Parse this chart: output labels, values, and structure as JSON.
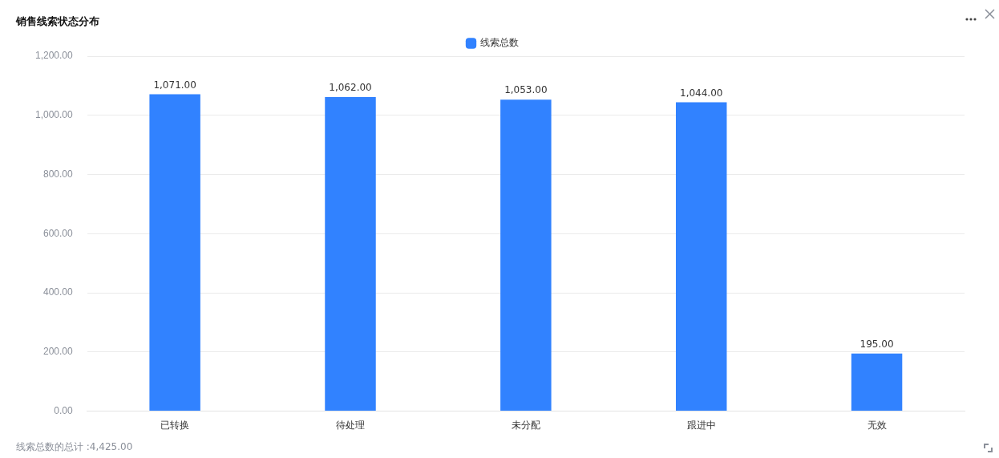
{
  "chart_data": {
    "type": "bar",
    "title": "销售线索状态分布",
    "categories": [
      "已转换",
      "待处理",
      "未分配",
      "跟进中",
      "无效"
    ],
    "series": [
      {
        "name": "线索总数",
        "color": "#3182ff",
        "values": [
          1071,
          1062,
          1053,
          1044,
          195
        ],
        "value_labels": [
          "1,071.00",
          "1,062.00",
          "1,053.00",
          "1,044.00",
          "195.00"
        ]
      }
    ],
    "ylim": [
      0,
      1200
    ],
    "yticks": [
      {
        "value": 0,
        "label": "0.00"
      },
      {
        "value": 200,
        "label": "200.00"
      },
      {
        "value": 400,
        "label": "400.00"
      },
      {
        "value": 600,
        "label": "600.00"
      },
      {
        "value": 800,
        "label": "800.00"
      },
      {
        "value": 1000,
        "label": "1,000.00"
      },
      {
        "value": 1200,
        "label": "1,200.00"
      }
    ],
    "grid": "y",
    "legend": "top",
    "annotations": [
      "线索总数的总计 :4,425.00"
    ]
  }
}
